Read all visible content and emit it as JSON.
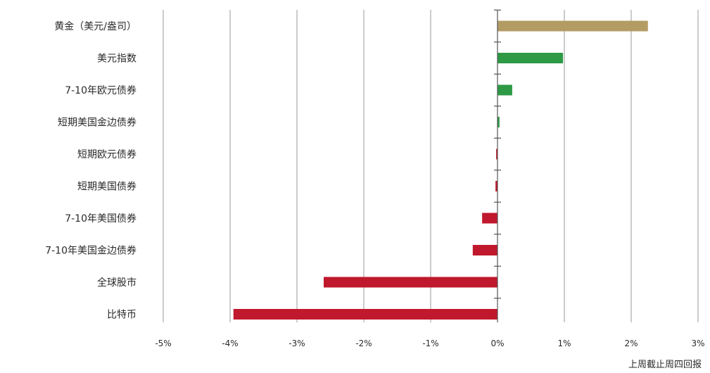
{
  "chart_data": {
    "type": "bar",
    "orientation": "horizontal",
    "categories": [
      "黄金（美元/盎司）",
      "美元指数",
      "7-10年欧元债券",
      "短期美国金边债券",
      "短期欧元债券",
      "短期美国债券",
      "7-10年美国债券",
      "7-10年美国金边债券",
      "全球股市",
      "比特币"
    ],
    "values": [
      2.25,
      0.98,
      0.22,
      0.03,
      -0.02,
      -0.03,
      -0.23,
      -0.37,
      -2.6,
      -3.95
    ],
    "bar_colors": [
      "#b39c64",
      "#2e9a46",
      "#2e9a46",
      "#2e9a46",
      "#c0182c",
      "#c0182c",
      "#c0182c",
      "#c0182c",
      "#c0182c",
      "#c0182c"
    ],
    "xlim": [
      -5,
      3
    ],
    "xticks": [
      -5,
      -4,
      -3,
      -2,
      -1,
      0,
      1,
      2,
      3
    ],
    "xtick_labels": [
      "-5%",
      "-4%",
      "-3%",
      "-2%",
      "-1%",
      "0%",
      "1%",
      "2%",
      "3%"
    ],
    "grid": "vertical",
    "xlabel": "上周截止周四回报"
  }
}
